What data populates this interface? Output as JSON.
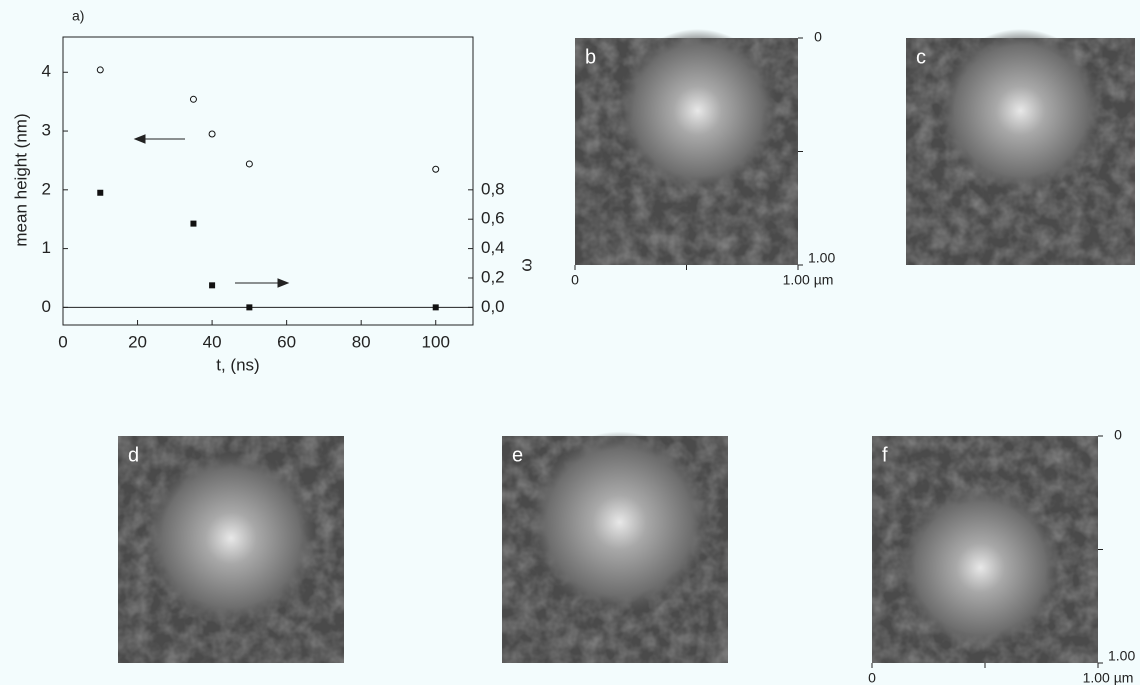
{
  "chart_data": {
    "type": "scatter",
    "panel_label": "a)",
    "xlabel": "t, (ns)",
    "ylabel": "mean height (nm)",
    "y2label": "ω",
    "xlim": [
      0,
      110
    ],
    "xticks": [
      0,
      20,
      40,
      60,
      80,
      100
    ],
    "ylim": [
      -0.3,
      4.6
    ],
    "yticks": [
      0,
      1,
      2,
      3,
      4
    ],
    "y2lim": [
      -0.12,
      1.84
    ],
    "y2ticks": [
      {
        "value": 0,
        "label": "0,0"
      },
      {
        "value": 0.2,
        "label": "0,2"
      },
      {
        "value": 0.4,
        "label": "0,4"
      },
      {
        "value": 0.6,
        "label": "0,6"
      },
      {
        "value": 0.8,
        "label": "0,8"
      }
    ],
    "series": [
      {
        "marker": "open-circle",
        "color": "#111111",
        "x": [
          10,
          35,
          40,
          50,
          100
        ],
        "values": [
          4.04,
          3.54,
          2.95,
          2.44,
          2.35
        ]
      },
      {
        "marker": "filled-square",
        "color": "#111111",
        "axis": "y2",
        "x": [
          10,
          35,
          40,
          50,
          100
        ],
        "values": [
          0.78,
          0.57,
          0.15,
          0.0,
          0.0
        ]
      }
    ]
  },
  "panels": [
    {
      "label": "b"
    },
    {
      "label": "c"
    },
    {
      "label": "d"
    },
    {
      "label": "e"
    },
    {
      "label": "f"
    }
  ],
  "scale_b": {
    "top": "0",
    "bottom": "1.00",
    "left": "0",
    "right": "1.00 µm"
  },
  "scale_f": {
    "top": "0",
    "bottom": "1.00",
    "left": "0",
    "right": "1.00 µm"
  }
}
